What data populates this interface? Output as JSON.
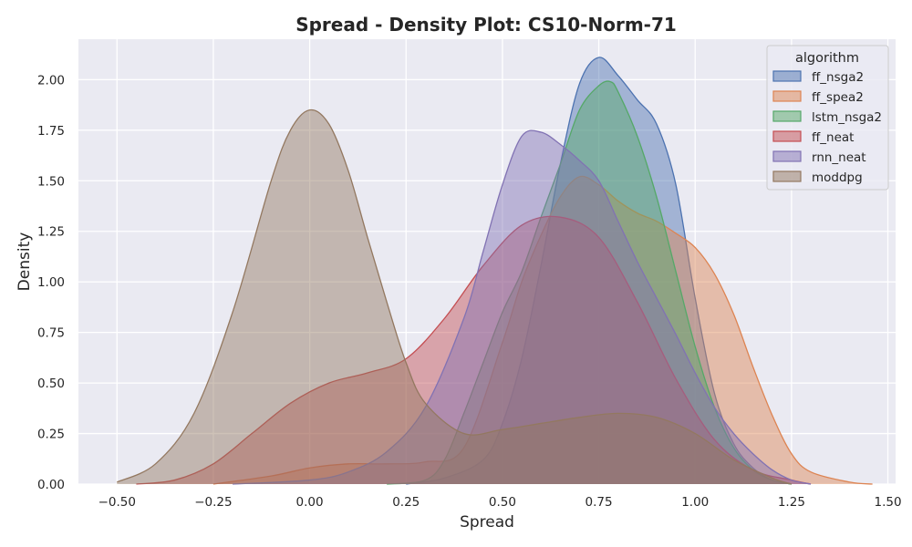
{
  "chart_data": {
    "type": "area",
    "title": "Spread - Density Plot: CS10-Norm-71",
    "xlabel": "Spread",
    "ylabel": "Density",
    "xlim": [
      -0.6,
      1.52
    ],
    "ylim": [
      0,
      2.2
    ],
    "x_ticks": [
      -0.5,
      -0.25,
      0.0,
      0.25,
      0.5,
      0.75,
      1.0,
      1.25,
      1.5
    ],
    "x_tick_labels": [
      "−0.50",
      "−0.25",
      "0.00",
      "0.25",
      "0.50",
      "0.75",
      "1.00",
      "1.25",
      "1.50"
    ],
    "y_ticks": [
      0.0,
      0.25,
      0.5,
      0.75,
      1.0,
      1.25,
      1.5,
      1.75,
      2.0
    ],
    "y_tick_labels": [
      "0.00",
      "0.25",
      "0.50",
      "0.75",
      "1.00",
      "1.25",
      "1.50",
      "1.75",
      "2.00"
    ],
    "grid": true,
    "legend": {
      "title": "algorithm",
      "placement": "top-right"
    },
    "series": [
      {
        "name": "ff_nsga2",
        "color": "#4c72b0",
        "x": [
          0.25,
          0.35,
          0.45,
          0.5,
          0.55,
          0.6,
          0.65,
          0.7,
          0.75,
          0.8,
          0.85,
          0.9,
          0.95,
          1.0,
          1.05,
          1.1,
          1.15,
          1.2,
          1.25
        ],
        "y": [
          0.0,
          0.03,
          0.12,
          0.3,
          0.62,
          1.08,
          1.58,
          1.98,
          2.11,
          2.02,
          1.9,
          1.78,
          1.48,
          0.92,
          0.45,
          0.2,
          0.08,
          0.02,
          0.0
        ]
      },
      {
        "name": "ff_spea2",
        "color": "#dd8452",
        "x": [
          -0.25,
          -0.1,
          0.0,
          0.1,
          0.2,
          0.3,
          0.4,
          0.5,
          0.55,
          0.6,
          0.65,
          0.7,
          0.75,
          0.8,
          0.85,
          0.9,
          0.95,
          1.0,
          1.05,
          1.1,
          1.15,
          1.2,
          1.25,
          1.3,
          1.4,
          1.46
        ],
        "y": [
          0.0,
          0.04,
          0.08,
          0.1,
          0.1,
          0.11,
          0.18,
          0.7,
          1.0,
          1.23,
          1.42,
          1.52,
          1.48,
          1.4,
          1.34,
          1.3,
          1.24,
          1.17,
          1.04,
          0.84,
          0.58,
          0.34,
          0.15,
          0.06,
          0.01,
          0.0
        ]
      },
      {
        "name": "lstm_nsga2",
        "color": "#55a868",
        "x": [
          0.2,
          0.3,
          0.35,
          0.4,
          0.45,
          0.5,
          0.55,
          0.6,
          0.65,
          0.7,
          0.75,
          0.78,
          0.8,
          0.85,
          0.9,
          0.95,
          1.0,
          1.05,
          1.1,
          1.15,
          1.2,
          1.25
        ],
        "y": [
          0.0,
          0.02,
          0.12,
          0.35,
          0.6,
          0.85,
          1.05,
          1.32,
          1.58,
          1.85,
          1.97,
          1.99,
          1.94,
          1.72,
          1.42,
          1.05,
          0.68,
          0.38,
          0.18,
          0.07,
          0.02,
          0.0
        ]
      },
      {
        "name": "ff_neat",
        "color": "#c44e52",
        "x": [
          -0.45,
          -0.35,
          -0.25,
          -0.15,
          -0.05,
          0.05,
          0.15,
          0.25,
          0.35,
          0.45,
          0.55,
          0.65,
          0.75,
          0.85,
          0.95,
          1.05,
          1.15,
          1.25,
          1.3
        ],
        "y": [
          0.0,
          0.02,
          0.1,
          0.25,
          0.4,
          0.5,
          0.55,
          0.62,
          0.82,
          1.08,
          1.28,
          1.32,
          1.22,
          0.9,
          0.52,
          0.22,
          0.07,
          0.02,
          0.0
        ]
      },
      {
        "name": "rnn_neat",
        "color": "#8172b3",
        "x": [
          -0.2,
          0.0,
          0.1,
          0.2,
          0.3,
          0.4,
          0.45,
          0.5,
          0.55,
          0.6,
          0.65,
          0.7,
          0.75,
          0.8,
          0.85,
          0.9,
          0.95,
          1.0,
          1.05,
          1.1,
          1.15,
          1.2,
          1.25,
          1.3
        ],
        "y": [
          0.0,
          0.02,
          0.06,
          0.16,
          0.38,
          0.82,
          1.15,
          1.48,
          1.72,
          1.74,
          1.68,
          1.6,
          1.5,
          1.3,
          1.1,
          0.92,
          0.74,
          0.55,
          0.38,
          0.25,
          0.15,
          0.07,
          0.02,
          0.0
        ]
      },
      {
        "name": "moddpg",
        "color": "#937860",
        "x": [
          -0.5,
          -0.4,
          -0.3,
          -0.2,
          -0.1,
          -0.05,
          0.0,
          0.05,
          0.1,
          0.15,
          0.2,
          0.25,
          0.3,
          0.4,
          0.5,
          0.6,
          0.7,
          0.8,
          0.9,
          1.0,
          1.1,
          1.2,
          1.25
        ],
        "y": [
          0.01,
          0.1,
          0.35,
          0.85,
          1.5,
          1.75,
          1.85,
          1.78,
          1.55,
          1.22,
          0.9,
          0.6,
          0.4,
          0.25,
          0.27,
          0.3,
          0.33,
          0.35,
          0.33,
          0.25,
          0.12,
          0.03,
          0.0
        ]
      }
    ]
  }
}
